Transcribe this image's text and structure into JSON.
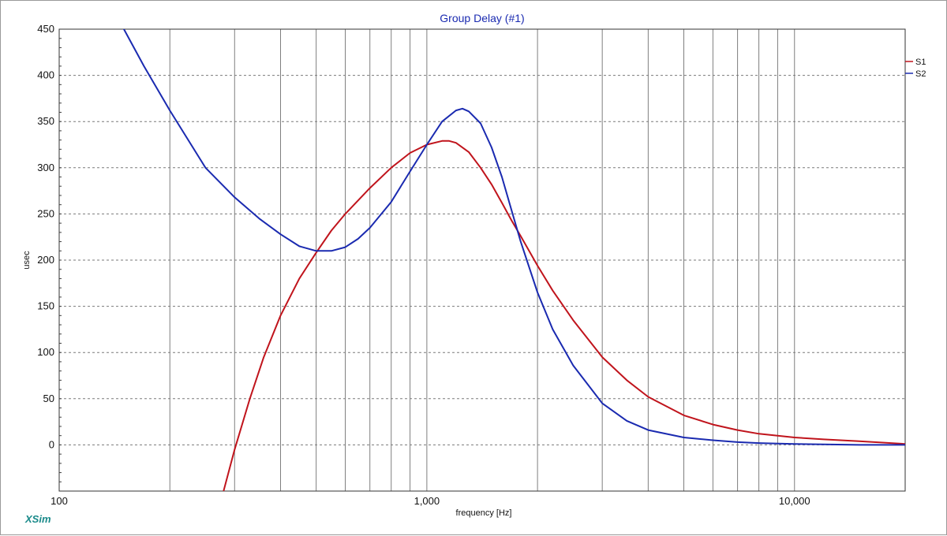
{
  "app": {
    "brand": "XSim"
  },
  "colors": {
    "s1": "#c0141c",
    "s2": "#1a2ab0",
    "title": "#1a2ab0",
    "grid": "#7a7a7a",
    "brand": "#1a8a8a"
  },
  "chart_data": {
    "type": "line",
    "title": "Group Delay (#1)",
    "xlabel": "frequency [Hz]",
    "ylabel": "usec",
    "xscale": "log",
    "xlim": [
      100,
      20000
    ],
    "ylim": [
      -50,
      450
    ],
    "xticks": [
      {
        "value": 100,
        "label": "100"
      },
      {
        "value": 1000,
        "label": "1,000"
      },
      {
        "value": 10000,
        "label": "10,000"
      }
    ],
    "yticks": [
      {
        "value": 0,
        "label": "0"
      },
      {
        "value": 50,
        "label": "50"
      },
      {
        "value": 100,
        "label": "100"
      },
      {
        "value": 150,
        "label": "150"
      },
      {
        "value": 200,
        "label": "200"
      },
      {
        "value": 250,
        "label": "250"
      },
      {
        "value": 300,
        "label": "300"
      },
      {
        "value": 350,
        "label": "350"
      },
      {
        "value": 400,
        "label": "400"
      },
      {
        "value": 450,
        "label": "450"
      }
    ],
    "grid": true,
    "legend_position": "top-right",
    "series": [
      {
        "name": "S1",
        "color": "#c0141c",
        "points": [
          [
            280,
            -50
          ],
          [
            300,
            -5
          ],
          [
            330,
            50
          ],
          [
            360,
            95
          ],
          [
            400,
            140
          ],
          [
            450,
            180
          ],
          [
            500,
            208
          ],
          [
            550,
            232
          ],
          [
            600,
            250
          ],
          [
            700,
            278
          ],
          [
            800,
            300
          ],
          [
            900,
            316
          ],
          [
            1000,
            325
          ],
          [
            1100,
            329
          ],
          [
            1150,
            329
          ],
          [
            1200,
            327
          ],
          [
            1300,
            317
          ],
          [
            1400,
            300
          ],
          [
            1500,
            282
          ],
          [
            1600,
            262
          ],
          [
            1700,
            243
          ],
          [
            1800,
            226
          ],
          [
            2000,
            194
          ],
          [
            2200,
            167
          ],
          [
            2500,
            135
          ],
          [
            3000,
            95
          ],
          [
            3500,
            70
          ],
          [
            4000,
            52
          ],
          [
            5000,
            32
          ],
          [
            6000,
            22
          ],
          [
            7000,
            16
          ],
          [
            8000,
            12
          ],
          [
            10000,
            8
          ],
          [
            12000,
            6
          ],
          [
            15000,
            4
          ],
          [
            20000,
            1
          ]
        ]
      },
      {
        "name": "S2",
        "color": "#1a2ab0",
        "points": [
          [
            150,
            450
          ],
          [
            170,
            410
          ],
          [
            200,
            362
          ],
          [
            250,
            300
          ],
          [
            300,
            268
          ],
          [
            350,
            245
          ],
          [
            400,
            228
          ],
          [
            450,
            215
          ],
          [
            500,
            210
          ],
          [
            550,
            210
          ],
          [
            600,
            214
          ],
          [
            650,
            223
          ],
          [
            700,
            235
          ],
          [
            800,
            263
          ],
          [
            900,
            296
          ],
          [
            1000,
            325
          ],
          [
            1100,
            350
          ],
          [
            1200,
            362
          ],
          [
            1250,
            364
          ],
          [
            1300,
            361
          ],
          [
            1400,
            348
          ],
          [
            1500,
            322
          ],
          [
            1600,
            290
          ],
          [
            1700,
            254
          ],
          [
            1800,
            220
          ],
          [
            2000,
            165
          ],
          [
            2200,
            125
          ],
          [
            2500,
            86
          ],
          [
            3000,
            45
          ],
          [
            3500,
            26
          ],
          [
            4000,
            16
          ],
          [
            5000,
            8
          ],
          [
            6000,
            5
          ],
          [
            7000,
            3
          ],
          [
            8000,
            2
          ],
          [
            10000,
            1
          ],
          [
            15000,
            0
          ],
          [
            20000,
            0
          ]
        ]
      }
    ]
  }
}
